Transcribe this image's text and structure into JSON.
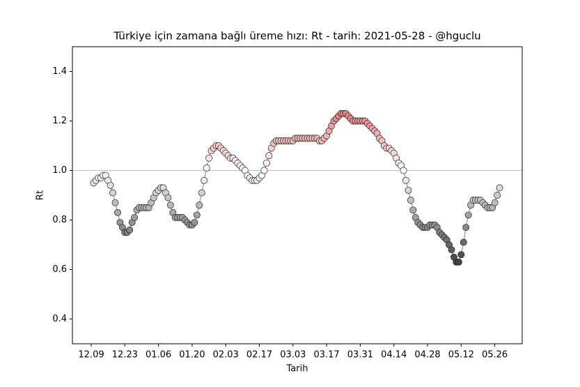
{
  "chart_data": {
    "type": "scatter",
    "title": "Türkiye için zamana bağlı üreme hızı: Rt - tarih: 2021-05-28 - @hguclu",
    "xlabel": "Tarih",
    "ylabel": "Rt",
    "categories": [
      "12.09",
      null,
      null,
      null,
      null,
      null,
      null,
      null,
      null,
      null,
      null,
      null,
      null,
      null,
      "12.23",
      null,
      null,
      null,
      null,
      null,
      null,
      null,
      null,
      null,
      null,
      null,
      null,
      null,
      "01.06",
      null,
      null,
      null,
      null,
      null,
      null,
      null,
      null,
      null,
      null,
      null,
      null,
      null,
      "01.20",
      null,
      null,
      null,
      null,
      null,
      null,
      null,
      null,
      null,
      null,
      null,
      null,
      null,
      "02.03",
      null,
      null,
      null,
      null,
      null,
      null,
      null,
      null,
      null,
      null,
      null,
      null,
      null,
      "02.17",
      null,
      null,
      null,
      null,
      null,
      null,
      null,
      null,
      null,
      null,
      null,
      null,
      null,
      "03.03",
      null,
      null,
      null,
      null,
      null,
      null,
      null,
      null,
      null,
      null,
      null,
      null,
      null,
      "03.17",
      null,
      null,
      null,
      null,
      null,
      null,
      null,
      null,
      null,
      null,
      null,
      null,
      null,
      "03.31",
      null,
      null,
      null,
      null,
      null,
      null,
      null,
      null,
      null,
      null,
      null,
      null,
      null,
      "04.14",
      null,
      null,
      null,
      null,
      null,
      null,
      null,
      null,
      null,
      null,
      null,
      null,
      null,
      "04.28",
      null,
      null,
      null,
      null,
      null,
      null,
      null,
      null,
      null,
      null,
      null,
      null,
      null,
      "05.12",
      null,
      null,
      null,
      null,
      null,
      null,
      null,
      null,
      null,
      null,
      null,
      null,
      null,
      "05.26",
      null,
      null
    ],
    "values": [
      null,
      0.95,
      0.96,
      0.97,
      0.97,
      0.98,
      0.98,
      0.96,
      0.94,
      0.91,
      0.87,
      0.83,
      0.79,
      0.77,
      0.75,
      0.75,
      0.76,
      0.79,
      0.81,
      0.84,
      0.85,
      0.85,
      0.85,
      0.85,
      0.85,
      0.87,
      0.89,
      0.91,
      0.92,
      0.93,
      0.93,
      0.91,
      0.89,
      0.86,
      0.83,
      0.81,
      0.81,
      0.81,
      0.81,
      0.8,
      0.79,
      0.78,
      0.78,
      0.79,
      0.82,
      0.86,
      0.91,
      0.96,
      1.01,
      1.05,
      1.08,
      1.09,
      1.1,
      1.1,
      1.09,
      1.08,
      1.07,
      1.06,
      1.05,
      1.05,
      1.04,
      1.03,
      1.02,
      1.01,
      1.0,
      0.98,
      0.97,
      0.96,
      0.96,
      0.96,
      0.97,
      0.98,
      1.0,
      1.03,
      1.06,
      1.09,
      1.11,
      1.12,
      1.12,
      1.12,
      1.12,
      1.12,
      1.12,
      1.12,
      1.12,
      1.13,
      1.13,
      1.13,
      1.13,
      1.13,
      1.13,
      1.13,
      1.13,
      1.13,
      1.13,
      1.12,
      1.12,
      1.13,
      1.14,
      1.16,
      1.18,
      1.2,
      1.21,
      1.22,
      1.23,
      1.23,
      1.23,
      1.22,
      1.21,
      1.2,
      1.2,
      1.2,
      1.2,
      1.2,
      1.2,
      1.19,
      1.18,
      1.17,
      1.16,
      1.15,
      1.13,
      1.12,
      1.1,
      1.09,
      1.09,
      1.08,
      1.07,
      1.05,
      1.03,
      1.02,
      1.0,
      0.96,
      0.92,
      0.88,
      0.84,
      0.81,
      0.79,
      0.78,
      0.77,
      0.77,
      0.77,
      0.78,
      0.78,
      0.78,
      0.77,
      0.75,
      0.74,
      0.73,
      0.72,
      0.7,
      0.68,
      0.65,
      0.63,
      0.63,
      0.66,
      0.71,
      0.77,
      0.82,
      0.86,
      0.88,
      0.88,
      0.88,
      0.88,
      0.87,
      0.86,
      0.85,
      0.85,
      0.85,
      0.87,
      0.9,
      0.93
    ],
    "ylim": [
      0.3,
      1.5
    ],
    "yticks": [
      0.4,
      0.6,
      0.8,
      {
        "value": 1,
        "label": "1.0"
      },
      1.2,
      1.4
    ],
    "hline": 1,
    "line_color": "#aaaaaa",
    "cmap": [
      "#333333",
      "#ffffff",
      "#d62728"
    ],
    "clim": [
      0.6,
      1.4
    ]
  }
}
